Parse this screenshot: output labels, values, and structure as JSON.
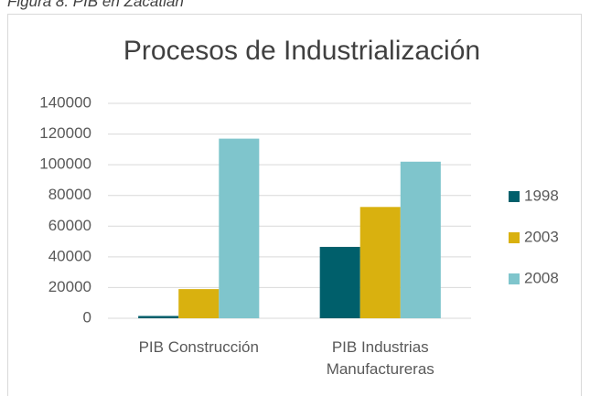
{
  "caption": "Figura 8. PIB en Zacatlán",
  "chart_data": {
    "type": "bar",
    "title": "Procesos de Industrialización",
    "categories": [
      "PIB Construcción",
      "PIB Industrias Manufactureras"
    ],
    "series": [
      {
        "name": "1998",
        "color": "#005f6b",
        "values": [
          1500,
          46500
        ]
      },
      {
        "name": "2003",
        "color": "#d9b10f",
        "values": [
          19000,
          72500
        ]
      },
      {
        "name": "2008",
        "color": "#7fc5cc",
        "values": [
          117000,
          102000
        ]
      }
    ],
    "ylim": [
      0,
      140000
    ],
    "yticks": [
      0,
      20000,
      40000,
      60000,
      80000,
      100000,
      120000,
      140000
    ],
    "grid": true,
    "legend": "right"
  }
}
